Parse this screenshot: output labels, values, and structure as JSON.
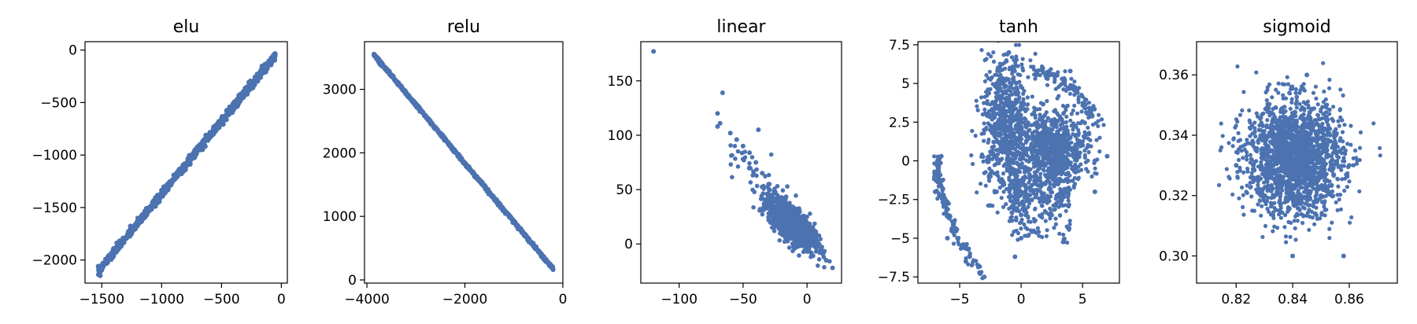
{
  "chart_data": [
    {
      "type": "scatter",
      "title": "elu",
      "color": "#4c72b0",
      "xlim": [
        -1640,
        50
      ],
      "ylim": [
        -2220,
        80
      ],
      "xticks": [
        -1500,
        -1000,
        -500,
        0
      ],
      "yticks": [
        0,
        -500,
        -1000,
        -1500,
        -2000
      ],
      "points": [
        [
          -1520,
          -2110
        ],
        [
          -1400,
          -1950
        ],
        [
          -1250,
          -1750
        ],
        [
          -1100,
          -1530
        ],
        [
          -950,
          -1320
        ],
        [
          -800,
          -1110
        ],
        [
          -650,
          -900
        ],
        [
          -500,
          -690
        ],
        [
          -350,
          -480
        ],
        [
          -200,
          -270
        ],
        [
          -60,
          -40
        ]
      ]
    },
    {
      "type": "scatter",
      "title": "relu",
      "color": "#4c72b0",
      "xlim": [
        -4050,
        0
      ],
      "ylim": [
        -50,
        3750
      ],
      "xticks": [
        -4000,
        -2000,
        0
      ],
      "yticks": [
        0,
        1000,
        2000,
        3000
      ],
      "points": [
        [
          -3850,
          3550
        ],
        [
          -3500,
          3210
        ],
        [
          -3000,
          2740
        ],
        [
          -2500,
          2280
        ],
        [
          -2000,
          1820
        ],
        [
          -1500,
          1360
        ],
        [
          -1000,
          900
        ],
        [
          -500,
          440
        ],
        [
          -200,
          160
        ]
      ]
    },
    {
      "type": "scatter",
      "title": "linear",
      "color": "#4c72b0",
      "xlim": [
        -130,
        27
      ],
      "ylim": [
        -36,
        186
      ],
      "xticks": [
        -100,
        -50,
        0
      ],
      "yticks": [
        0,
        50,
        100,
        150
      ],
      "points": [
        [
          -120,
          177
        ],
        [
          -70,
          120
        ],
        [
          -68,
          111
        ],
        [
          -70,
          108
        ],
        [
          -66,
          139
        ],
        [
          -60,
          102
        ],
        [
          -55,
          96
        ],
        [
          -50,
          90
        ],
        [
          -45,
          84
        ],
        [
          -40,
          75
        ],
        [
          -38,
          105
        ],
        [
          -35,
          65
        ],
        [
          -30,
          55
        ],
        [
          -25,
          47
        ],
        [
          -20,
          40
        ],
        [
          -15,
          32
        ],
        [
          -10,
          22
        ],
        [
          -5,
          15
        ],
        [
          0,
          8
        ],
        [
          5,
          0
        ],
        [
          10,
          -8
        ],
        [
          15,
          -15
        ],
        [
          20,
          -22
        ],
        [
          -45,
          70
        ]
      ]
    },
    {
      "type": "scatter",
      "title": "tanh",
      "color": "#4c72b0",
      "xlim": [
        -8.4,
        8.0
      ],
      "ylim": [
        -7.9,
        7.7
      ],
      "xticks": [
        -5,
        0,
        5
      ],
      "yticks": [
        7.5,
        5.0,
        2.5,
        0.0,
        -2.5,
        -5.0,
        -7.5
      ],
      "points": [
        [
          -1,
          7.0
        ],
        [
          -2,
          5.0
        ],
        [
          -1,
          4.0
        ],
        [
          -3,
          2.0
        ],
        [
          -2,
          -2.0
        ],
        [
          0,
          -3.5
        ],
        [
          0,
          -5.0
        ],
        [
          -0.5,
          -6.2
        ],
        [
          1,
          1.0
        ],
        [
          2,
          0.5
        ],
        [
          4,
          1.5
        ],
        [
          5,
          1.0
        ],
        [
          6,
          0.0
        ],
        [
          4,
          5.8
        ],
        [
          2,
          5.5
        ],
        [
          -6.5,
          0.3
        ],
        [
          -7,
          -2.0
        ],
        [
          -6,
          -5.0
        ],
        [
          -4.5,
          -6.5
        ],
        [
          -3,
          -7.5
        ],
        [
          3,
          -1.5
        ],
        [
          6,
          -2.0
        ],
        [
          7,
          0.3
        ]
      ]
    },
    {
      "type": "scatter",
      "title": "sigmoid",
      "color": "#4c72b0",
      "xlim": [
        0.806,
        0.877
      ],
      "ylim": [
        0.291,
        0.371
      ],
      "xticks": [
        0.82,
        0.84,
        0.86
      ],
      "yticks": [
        0.3,
        0.32,
        0.34,
        0.36
      ],
      "points": [
        [
          0.84,
          0.33
        ],
        [
          0.83,
          0.34
        ],
        [
          0.85,
          0.32
        ],
        [
          0.826,
          0.326
        ],
        [
          0.855,
          0.335
        ],
        [
          0.845,
          0.36
        ],
        [
          0.84,
          0.3
        ],
        [
          0.82,
          0.33
        ],
        [
          0.86,
          0.33
        ],
        [
          0.833,
          0.345
        ],
        [
          0.848,
          0.314
        ],
        [
          0.858,
          0.3
        ]
      ]
    }
  ]
}
